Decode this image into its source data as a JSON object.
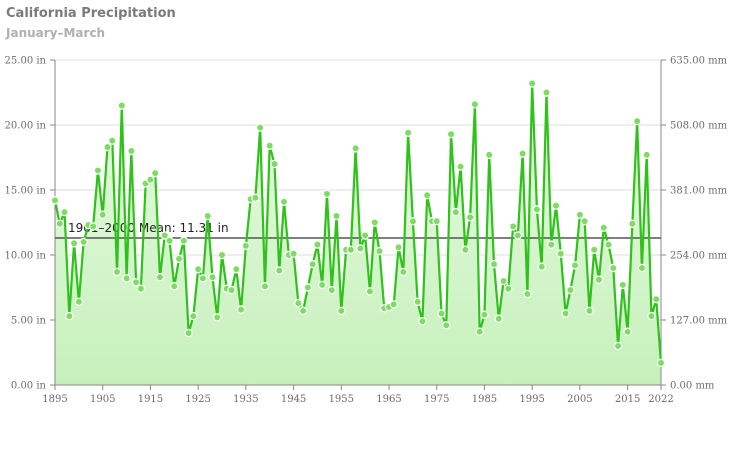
{
  "title": "California Precipitation",
  "subtitle": "January–March",
  "chart_data": {
    "type": "line",
    "title": "California Precipitation",
    "subtitle": "January–March",
    "xlim": [
      1895,
      2022
    ],
    "ylim": [
      0,
      25
    ],
    "y2lim": [
      0,
      635
    ],
    "grid": true,
    "x_ticks": [
      "1895",
      "1905",
      "1915",
      "1925",
      "1935",
      "1945",
      "1955",
      "1965",
      "1975",
      "1985",
      "1995",
      "2005",
      "2015",
      "2022"
    ],
    "y_ticks": [
      "0.00 in",
      "5.00 in",
      "10.00 in",
      "15.00 in",
      "20.00 in",
      "25.00 in"
    ],
    "y2_ticks": [
      "0.00 mm",
      "127.00 mm",
      "254.00 mm",
      "381.00 mm",
      "508.00 mm",
      "635.00 mm"
    ],
    "mean": {
      "value": 11.31,
      "label": "1901–2000 Mean: 11.31 in"
    },
    "colors": {
      "line": "#2ec21a",
      "fill": "#d4f5cc",
      "mean": "#555555",
      "marker": "#7ddd62"
    },
    "x": [
      1895,
      1896,
      1897,
      1898,
      1899,
      1900,
      1901,
      1902,
      1903,
      1904,
      1905,
      1906,
      1907,
      1908,
      1909,
      1910,
      1911,
      1912,
      1913,
      1914,
      1915,
      1916,
      1917,
      1918,
      1919,
      1920,
      1921,
      1922,
      1923,
      1924,
      1925,
      1926,
      1927,
      1928,
      1929,
      1930,
      1931,
      1932,
      1933,
      1934,
      1935,
      1936,
      1937,
      1938,
      1939,
      1940,
      1941,
      1942,
      1943,
      1944,
      1945,
      1946,
      1947,
      1948,
      1949,
      1950,
      1951,
      1952,
      1953,
      1954,
      1955,
      1956,
      1957,
      1958,
      1959,
      1960,
      1961,
      1962,
      1963,
      1964,
      1965,
      1966,
      1967,
      1968,
      1969,
      1970,
      1971,
      1972,
      1973,
      1974,
      1975,
      1976,
      1977,
      1978,
      1979,
      1980,
      1981,
      1982,
      1983,
      1984,
      1985,
      1986,
      1987,
      1988,
      1989,
      1990,
      1991,
      1992,
      1993,
      1994,
      1995,
      1996,
      1997,
      1998,
      1999,
      2000,
      2001,
      2002,
      2003,
      2004,
      2005,
      2006,
      2007,
      2008,
      2009,
      2010,
      2011,
      2012,
      2013,
      2014,
      2015,
      2016,
      2017,
      2018,
      2019,
      2020,
      2021,
      2022
    ],
    "values": [
      14.2,
      12.4,
      13.3,
      5.3,
      10.9,
      6.4,
      11.0,
      12.3,
      12.2,
      16.5,
      13.1,
      18.3,
      18.8,
      8.7,
      21.5,
      8.2,
      18.0,
      7.9,
      7.4,
      15.5,
      15.8,
      16.3,
      8.3,
      11.5,
      11.1,
      7.6,
      9.7,
      11.1,
      4.0,
      5.3,
      8.9,
      8.2,
      13.0,
      8.3,
      5.2,
      10.0,
      7.4,
      7.3,
      8.9,
      5.8,
      10.7,
      14.3,
      14.4,
      19.8,
      7.6,
      18.4,
      17.0,
      8.8,
      14.1,
      10.0,
      10.1,
      6.3,
      5.7,
      7.5,
      9.3,
      10.8,
      7.7,
      14.7,
      7.3,
      13.0,
      5.7,
      10.4,
      10.4,
      18.2,
      10.5,
      11.5,
      7.2,
      12.5,
      10.3,
      5.9,
      6.0,
      6.2,
      10.6,
      8.7,
      19.4,
      12.6,
      6.4,
      4.9,
      14.6,
      12.6,
      12.6,
      5.5,
      4.6,
      19.3,
      13.3,
      16.8,
      10.4,
      12.9,
      21.6,
      4.1,
      5.4,
      17.7,
      9.3,
      5.1,
      8.0,
      7.4,
      12.2,
      11.5,
      17.8,
      7.0,
      23.2,
      13.5,
      9.1,
      22.5,
      10.8,
      13.8,
      10.1,
      5.5,
      7.3,
      9.2,
      13.1,
      12.6,
      5.7,
      10.4,
      8.1,
      12.1,
      10.8,
      9.0,
      3.0,
      7.7,
      4.1,
      12.4,
      20.3,
      9.0,
      17.7,
      5.3,
      6.6,
      1.7
    ]
  }
}
